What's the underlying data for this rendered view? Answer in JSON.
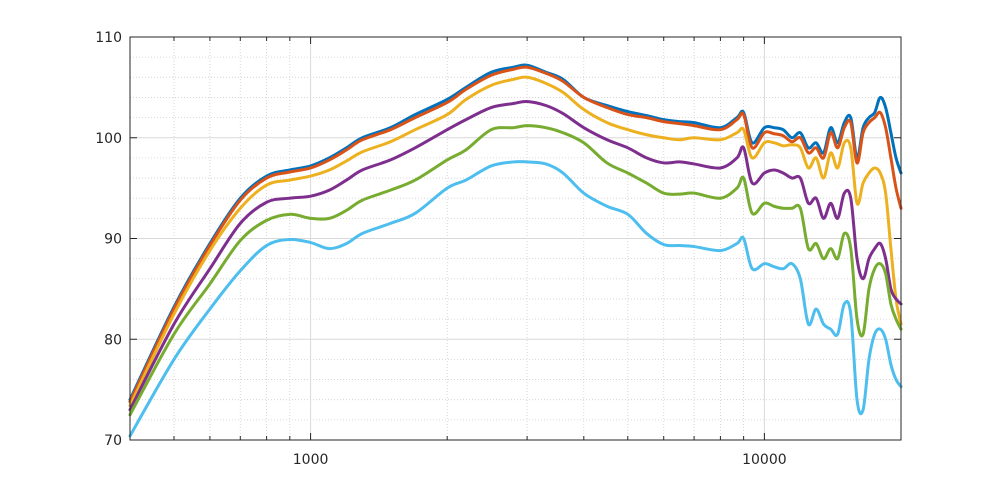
{
  "chart_data": {
    "type": "line",
    "title": "",
    "xlabel": "",
    "ylabel": "",
    "xscale": "log",
    "xlim": [
      400,
      20000
    ],
    "ylim": [
      70,
      110
    ],
    "grid": true,
    "minor_grid": true,
    "legend": "none",
    "x_ticks": [
      1000,
      10000
    ],
    "x_tick_labels": [
      "1000",
      "10000"
    ],
    "y_ticks": [
      70,
      80,
      90,
      100,
      110
    ],
    "y_tick_labels": [
      "70",
      "80",
      "90",
      "100",
      "110"
    ],
    "x": [
      400,
      500,
      600,
      700,
      800,
      900,
      1000,
      1100,
      1200,
      1300,
      1500,
      1700,
      2000,
      2200,
      2500,
      2800,
      3000,
      3300,
      3600,
      4000,
      4500,
      5000,
      5500,
      6000,
      6500,
      7000,
      8000,
      8700,
      9000,
      9400,
      10000,
      10500,
      11000,
      11500,
      12000,
      12500,
      13000,
      13500,
      14000,
      14500,
      15000,
      15500,
      16000,
      16500,
      17000,
      17500,
      18000,
      18500,
      19000,
      19500,
      20000
    ],
    "series": [
      {
        "color": "#0072BD",
        "values": [
          74.0,
          83.2,
          89.5,
          94.0,
          96.2,
          96.8,
          97.2,
          98.0,
          99.0,
          100.0,
          101.0,
          102.3,
          103.8,
          105.0,
          106.5,
          107.0,
          107.2,
          106.5,
          105.8,
          104.0,
          103.2,
          102.6,
          102.2,
          101.8,
          101.6,
          101.5,
          101.0,
          102.0,
          102.5,
          99.5,
          101.0,
          101.0,
          100.8,
          100.0,
          100.5,
          99.0,
          99.5,
          98.5,
          101.0,
          99.5,
          101.5,
          102.0,
          98.0,
          101.0,
          102.0,
          102.5,
          104.0,
          103.0,
          100.5,
          98.0,
          96.5
        ]
      },
      {
        "color": "#D95319",
        "values": [
          73.8,
          83.0,
          89.3,
          93.8,
          96.0,
          96.6,
          97.0,
          97.8,
          98.8,
          99.8,
          100.8,
          102.0,
          103.5,
          104.8,
          106.2,
          106.8,
          107.0,
          106.4,
          105.6,
          104.0,
          103.0,
          102.3,
          102.0,
          101.6,
          101.4,
          101.2,
          100.8,
          101.8,
          102.3,
          99.0,
          100.5,
          100.4,
          100.2,
          99.6,
          100.0,
          98.5,
          99.0,
          98.0,
          100.5,
          99.0,
          101.0,
          101.5,
          97.5,
          100.5,
          101.5,
          102.0,
          102.5,
          101.0,
          98.0,
          95.0,
          93.0
        ]
      },
      {
        "color": "#EDB120",
        "values": [
          73.4,
          82.5,
          88.8,
          93.0,
          95.3,
          95.8,
          96.2,
          96.8,
          97.7,
          98.6,
          99.6,
          100.8,
          102.3,
          103.8,
          105.2,
          105.8,
          106.0,
          105.4,
          104.5,
          102.8,
          101.5,
          100.8,
          100.3,
          100.0,
          99.8,
          100.0,
          99.8,
          100.5,
          100.8,
          98.0,
          99.5,
          99.5,
          99.2,
          99.3,
          99.0,
          97.0,
          98.0,
          96.0,
          98.5,
          97.0,
          99.5,
          99.0,
          93.5,
          95.5,
          96.5,
          97.0,
          96.5,
          94.5,
          89.0,
          84.0,
          81.5
        ]
      },
      {
        "color": "#7E2F8E",
        "values": [
          73.0,
          81.5,
          87.0,
          91.5,
          93.6,
          94.0,
          94.2,
          94.8,
          95.8,
          96.8,
          97.8,
          99.0,
          100.8,
          101.8,
          103.0,
          103.4,
          103.6,
          103.2,
          102.4,
          101.0,
          99.8,
          99.0,
          98.0,
          97.5,
          97.6,
          97.4,
          97.0,
          98.0,
          99.0,
          95.5,
          96.5,
          96.8,
          96.5,
          96.0,
          96.0,
          93.5,
          94.0,
          92.0,
          93.5,
          92.0,
          94.5,
          94.0,
          88.0,
          86.0,
          88.0,
          89.0,
          89.5,
          88.0,
          85.0,
          84.0,
          83.5
        ]
      },
      {
        "color": "#77AC30",
        "values": [
          72.5,
          80.5,
          85.5,
          89.8,
          91.8,
          92.4,
          92.0,
          92.0,
          92.8,
          93.8,
          94.8,
          95.8,
          97.8,
          98.8,
          100.8,
          101.0,
          101.2,
          101.0,
          100.5,
          99.5,
          97.5,
          96.5,
          95.5,
          94.5,
          94.4,
          94.5,
          94.0,
          95.0,
          96.0,
          92.5,
          93.5,
          93.2,
          93.0,
          93.0,
          93.0,
          89.0,
          89.5,
          88.0,
          89.0,
          88.0,
          90.5,
          89.0,
          82.0,
          80.5,
          85.0,
          87.0,
          87.5,
          86.5,
          83.5,
          82.0,
          81.0
        ]
      },
      {
        "color": "#4DBEEE",
        "values": [
          70.4,
          78.0,
          83.0,
          86.8,
          89.3,
          89.9,
          89.6,
          89.0,
          89.5,
          90.5,
          91.5,
          92.5,
          95.0,
          95.8,
          97.2,
          97.6,
          97.6,
          97.4,
          96.5,
          94.5,
          93.2,
          92.4,
          90.5,
          89.4,
          89.3,
          89.2,
          88.8,
          89.5,
          90.0,
          87.0,
          87.5,
          87.2,
          87.0,
          87.5,
          86.0,
          81.5,
          83.0,
          81.5,
          81.0,
          80.5,
          83.5,
          82.5,
          74.0,
          73.0,
          78.0,
          80.5,
          81.0,
          80.0,
          77.5,
          76.0,
          75.3
        ]
      }
    ]
  }
}
